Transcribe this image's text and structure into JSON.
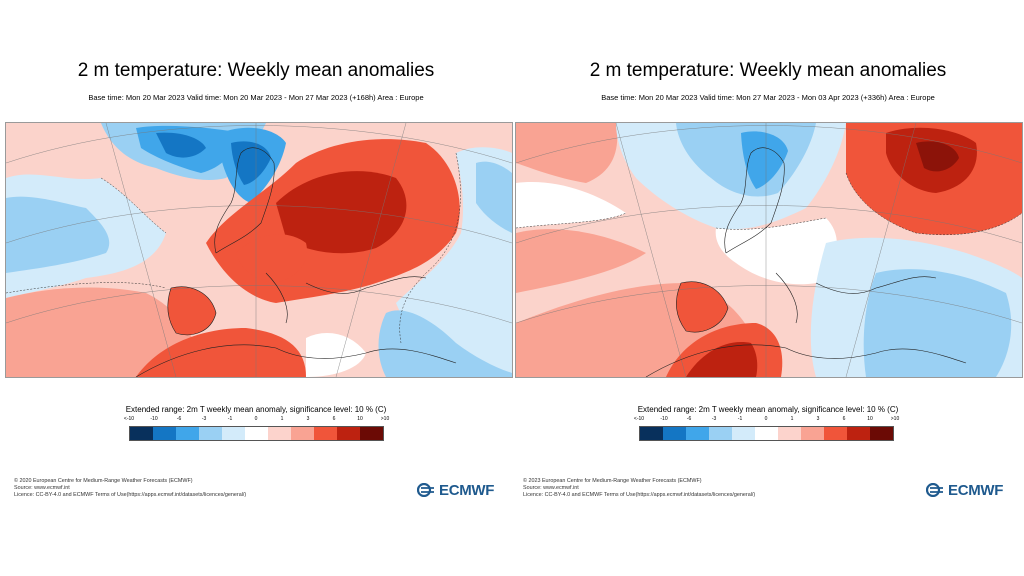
{
  "colors": {
    "scale": [
      "#08305c",
      "#1476c4",
      "#40a6ea",
      "#9ad0f3",
      "#d3ebfa",
      "#ffffff",
      "#fcd3cc",
      "#f9a393",
      "#f0553a",
      "#bd2210",
      "#6b0a05"
    ],
    "brand": "#1f5a8e"
  },
  "panels": [
    {
      "title": "2 m temperature: Weekly mean anomalies",
      "subtitle": "Base time: Mon 20 Mar 2023 Valid time: Mon 20 Mar 2023 - Mon 27 Mar 2023 (+168h) Area : Europe",
      "legend_title": "Extended range: 2m T weekly mean anomaly, significance level: 10 % (C)",
      "legend_ticks": [
        "<-10",
        "-10",
        "-6",
        "-3",
        "-1",
        "0",
        "1",
        "3",
        "6",
        "10",
        ">10"
      ],
      "footer": [
        "© 2020 European Centre for Medium-Range Weather Forecasts (ECMWF)",
        "Source: www.ecmwf.int",
        "Licence: CC-BY-4.0 and ECMWF Terms of Use(https://apps.ecmwf.int/datasets/licences/general/)"
      ],
      "logo": "ECMWF"
    },
    {
      "title": "2 m temperature: Weekly mean anomalies",
      "subtitle": "Base time: Mon 20 Mar 2023 Valid time: Mon 27 Mar 2023 - Mon 03 Apr 2023 (+336h) Area : Europe",
      "legend_title": "Extended range: 2m T weekly mean anomaly, significance level: 10 % (C)",
      "legend_ticks": [
        "<-10",
        "-10",
        "-6",
        "-3",
        "-1",
        "0",
        "1",
        "3",
        "6",
        "10",
        ">10"
      ],
      "footer": [
        "© 2023 European Centre for Medium-Range Weather Forecasts (ECMWF)",
        "Source: www.ecmwf.int",
        "Licence: CC-BY-4.0 and ECMWF Terms of Use(https://apps.ecmwf.int/datasets/licences/general/)"
      ],
      "logo": "ECMWF"
    }
  ]
}
